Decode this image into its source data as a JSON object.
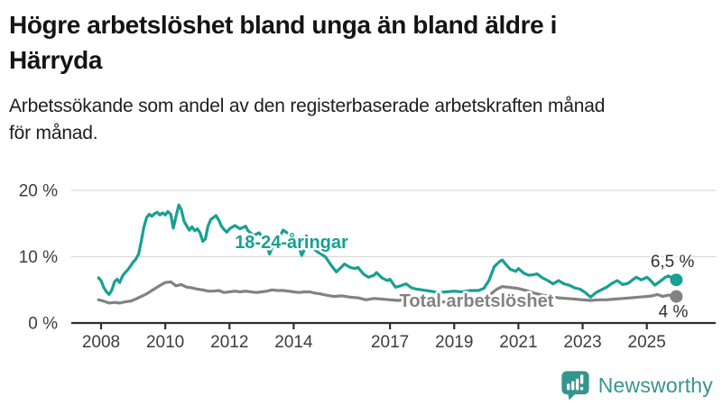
{
  "header": {
    "title": "Högre arbetslöshet bland unga än bland äldre i Härryda",
    "title_lines": [
      "Högre arbetslöshet bland unga än bland äldre i",
      "Härryda"
    ],
    "subtitle": "Arbetssökande som andel av den registerbaserade arbetskraften månad för månad.",
    "subtitle_lines": [
      "Arbetssökande som andel av den registerbaserade arbetskraften månad",
      "för månad."
    ]
  },
  "footer": {
    "brand": "Newsworthy",
    "logo_icon": "bar-chart-speech-bubble-icon",
    "brand_color": "#35958e"
  },
  "colors": {
    "youth_series": "#17a093",
    "total_series": "#828282",
    "axis": "#2f2f2f",
    "gridline": "#d9d9d9",
    "tick_label": "#3d3d3d",
    "end_label": "#2f2f2f"
  },
  "chart_data": {
    "type": "line",
    "title": "Högre arbetslöshet bland unga än bland äldre i Härryda",
    "subtitle": "Arbetssökande som andel av den registerbaserade arbetskraften månad för månad.",
    "xlabel": "",
    "ylabel": "",
    "unit": "%",
    "grid": "horizontal",
    "legend_position": "inline-annotations",
    "xlim": [
      2007.8,
      2026.3
    ],
    "ylim": [
      0,
      20
    ],
    "x_ticks": [
      {
        "v": 2008,
        "label": "2008"
      },
      {
        "v": 2010,
        "label": "2010"
      },
      {
        "v": 2012,
        "label": "2012"
      },
      {
        "v": 2014,
        "label": "2014"
      },
      {
        "v": 2017,
        "label": "2017"
      },
      {
        "v": 2019,
        "label": "2019"
      },
      {
        "v": 2021,
        "label": "2021"
      },
      {
        "v": 2023,
        "label": "2023"
      },
      {
        "v": 2025,
        "label": "2025"
      }
    ],
    "y_ticks": [
      {
        "v": 0,
        "label": "0 %"
      },
      {
        "v": 10,
        "label": "10 %"
      },
      {
        "v": 20,
        "label": "20 %"
      }
    ],
    "series": [
      {
        "name": "18-24-åringar",
        "color": "#17a093",
        "end_label": "6,5 %",
        "end_value": 6.5,
        "points": [
          [
            2007.92,
            6.8
          ],
          [
            2008.0,
            6.4
          ],
          [
            2008.08,
            5.4
          ],
          [
            2008.17,
            4.7
          ],
          [
            2008.25,
            4.3
          ],
          [
            2008.33,
            4.9
          ],
          [
            2008.42,
            6.2
          ],
          [
            2008.5,
            6.6
          ],
          [
            2008.58,
            6.1
          ],
          [
            2008.67,
            7.1
          ],
          [
            2008.75,
            7.6
          ],
          [
            2008.83,
            8.0
          ],
          [
            2008.92,
            8.6
          ],
          [
            2009.0,
            9.2
          ],
          [
            2009.08,
            9.6
          ],
          [
            2009.17,
            10.4
          ],
          [
            2009.25,
            12.3
          ],
          [
            2009.33,
            14.4
          ],
          [
            2009.42,
            15.9
          ],
          [
            2009.5,
            16.4
          ],
          [
            2009.58,
            16.1
          ],
          [
            2009.67,
            16.5
          ],
          [
            2009.75,
            16.7
          ],
          [
            2009.83,
            16.3
          ],
          [
            2009.92,
            16.6
          ],
          [
            2010.0,
            16.3
          ],
          [
            2010.08,
            16.8
          ],
          [
            2010.17,
            16.4
          ],
          [
            2010.25,
            14.3
          ],
          [
            2010.33,
            16.0
          ],
          [
            2010.42,
            17.8
          ],
          [
            2010.5,
            17.1
          ],
          [
            2010.58,
            15.4
          ],
          [
            2010.67,
            14.6
          ],
          [
            2010.75,
            14.0
          ],
          [
            2010.83,
            14.5
          ],
          [
            2010.92,
            13.9
          ],
          [
            2011.0,
            14.2
          ],
          [
            2011.08,
            13.6
          ],
          [
            2011.17,
            12.3
          ],
          [
            2011.25,
            12.7
          ],
          [
            2011.33,
            14.6
          ],
          [
            2011.42,
            15.6
          ],
          [
            2011.5,
            15.9
          ],
          [
            2011.58,
            16.2
          ],
          [
            2011.67,
            15.5
          ],
          [
            2011.75,
            14.6
          ],
          [
            2011.83,
            14.1
          ],
          [
            2011.92,
            13.7
          ],
          [
            2012.0,
            14.2
          ],
          [
            2012.17,
            14.7
          ],
          [
            2012.33,
            14.2
          ],
          [
            2012.5,
            14.6
          ],
          [
            2012.58,
            13.9
          ],
          [
            2012.75,
            13.2
          ],
          [
            2012.92,
            13.6
          ],
          [
            2013.08,
            12.7
          ],
          [
            2013.25,
            10.4
          ],
          [
            2013.42,
            12.5
          ],
          [
            2013.58,
            13.2
          ],
          [
            2013.67,
            14.0
          ],
          [
            2013.83,
            13.5
          ],
          [
            2014.0,
            13.1
          ],
          [
            2014.08,
            12.8
          ],
          [
            2014.25,
            10.2
          ],
          [
            2014.42,
            11.9
          ],
          [
            2014.58,
            11.4
          ],
          [
            2014.75,
            10.7
          ],
          [
            2014.92,
            10.2
          ],
          [
            2015.0,
            9.9
          ],
          [
            2015.17,
            8.7
          ],
          [
            2015.33,
            7.7
          ],
          [
            2015.5,
            8.5
          ],
          [
            2015.58,
            8.9
          ],
          [
            2015.75,
            8.4
          ],
          [
            2015.92,
            8.2
          ],
          [
            2016.0,
            8.4
          ],
          [
            2016.17,
            7.4
          ],
          [
            2016.33,
            6.9
          ],
          [
            2016.5,
            7.2
          ],
          [
            2016.58,
            7.6
          ],
          [
            2016.75,
            6.8
          ],
          [
            2016.92,
            6.4
          ],
          [
            2017.0,
            6.6
          ],
          [
            2017.17,
            5.4
          ],
          [
            2017.33,
            5.6
          ],
          [
            2017.5,
            5.9
          ],
          [
            2017.67,
            5.3
          ],
          [
            2017.83,
            5.1
          ],
          [
            2018.0,
            5.0
          ],
          [
            2018.25,
            4.8
          ],
          [
            2018.5,
            4.6
          ],
          [
            2018.75,
            4.7
          ],
          [
            2019.0,
            4.8
          ],
          [
            2019.25,
            4.7
          ],
          [
            2019.5,
            4.9
          ],
          [
            2019.75,
            4.9
          ],
          [
            2019.92,
            5.2
          ],
          [
            2020.08,
            6.4
          ],
          [
            2020.25,
            8.5
          ],
          [
            2020.42,
            9.3
          ],
          [
            2020.5,
            9.5
          ],
          [
            2020.58,
            9.0
          ],
          [
            2020.75,
            8.1
          ],
          [
            2020.92,
            7.8
          ],
          [
            2021.0,
            8.2
          ],
          [
            2021.17,
            7.5
          ],
          [
            2021.33,
            7.2
          ],
          [
            2021.5,
            7.3
          ],
          [
            2021.58,
            7.4
          ],
          [
            2021.75,
            6.8
          ],
          [
            2021.92,
            6.4
          ],
          [
            2022.08,
            5.9
          ],
          [
            2022.25,
            6.4
          ],
          [
            2022.42,
            5.9
          ],
          [
            2022.58,
            5.7
          ],
          [
            2022.75,
            5.3
          ],
          [
            2022.92,
            5.1
          ],
          [
            2023.08,
            4.6
          ],
          [
            2023.25,
            3.9
          ],
          [
            2023.42,
            4.6
          ],
          [
            2023.58,
            5.0
          ],
          [
            2023.75,
            5.4
          ],
          [
            2023.92,
            6.0
          ],
          [
            2024.08,
            6.4
          ],
          [
            2024.25,
            5.8
          ],
          [
            2024.42,
            6.0
          ],
          [
            2024.58,
            6.6
          ],
          [
            2024.67,
            6.9
          ],
          [
            2024.83,
            6.5
          ],
          [
            2024.92,
            6.7
          ],
          [
            2025.0,
            6.9
          ],
          [
            2025.08,
            6.6
          ],
          [
            2025.25,
            5.7
          ],
          [
            2025.42,
            6.3
          ],
          [
            2025.58,
            6.9
          ],
          [
            2025.67,
            7.1
          ],
          [
            2025.83,
            6.7
          ],
          [
            2025.92,
            6.5
          ]
        ]
      },
      {
        "name": "Total arbetslöshet",
        "color": "#828282",
        "end_label": "4 %",
        "end_value": 4.0,
        "points": [
          [
            2007.92,
            3.5
          ],
          [
            2008.08,
            3.3
          ],
          [
            2008.25,
            3.0
          ],
          [
            2008.42,
            3.1
          ],
          [
            2008.58,
            3.0
          ],
          [
            2008.75,
            3.2
          ],
          [
            2008.92,
            3.3
          ],
          [
            2009.08,
            3.6
          ],
          [
            2009.25,
            4.0
          ],
          [
            2009.42,
            4.4
          ],
          [
            2009.58,
            4.9
          ],
          [
            2009.75,
            5.4
          ],
          [
            2009.92,
            5.9
          ],
          [
            2010.0,
            6.1
          ],
          [
            2010.17,
            6.2
          ],
          [
            2010.33,
            5.6
          ],
          [
            2010.5,
            5.8
          ],
          [
            2010.67,
            5.4
          ],
          [
            2010.83,
            5.3
          ],
          [
            2011.0,
            5.1
          ],
          [
            2011.17,
            5.0
          ],
          [
            2011.33,
            4.8
          ],
          [
            2011.5,
            4.8
          ],
          [
            2011.67,
            4.9
          ],
          [
            2011.83,
            4.6
          ],
          [
            2012.0,
            4.7
          ],
          [
            2012.17,
            4.8
          ],
          [
            2012.33,
            4.7
          ],
          [
            2012.5,
            4.8
          ],
          [
            2012.67,
            4.7
          ],
          [
            2012.83,
            4.6
          ],
          [
            2013.0,
            4.7
          ],
          [
            2013.17,
            4.8
          ],
          [
            2013.33,
            5.0
          ],
          [
            2013.5,
            4.9
          ],
          [
            2013.67,
            4.9
          ],
          [
            2013.83,
            4.8
          ],
          [
            2014.0,
            4.7
          ],
          [
            2014.17,
            4.6
          ],
          [
            2014.33,
            4.7
          ],
          [
            2014.5,
            4.7
          ],
          [
            2014.67,
            4.5
          ],
          [
            2014.83,
            4.4
          ],
          [
            2015.0,
            4.2
          ],
          [
            2015.25,
            4.0
          ],
          [
            2015.5,
            4.1
          ],
          [
            2015.75,
            3.9
          ],
          [
            2016.0,
            3.8
          ],
          [
            2016.25,
            3.5
          ],
          [
            2016.5,
            3.7
          ],
          [
            2016.75,
            3.6
          ],
          [
            2017.0,
            3.5
          ],
          [
            2017.25,
            3.4
          ],
          [
            2017.5,
            3.5
          ],
          [
            2017.75,
            3.4
          ],
          [
            2018.0,
            3.3
          ],
          [
            2018.25,
            3.2
          ],
          [
            2018.5,
            3.1
          ],
          [
            2018.75,
            3.2
          ],
          [
            2019.0,
            3.3
          ],
          [
            2019.25,
            3.3
          ],
          [
            2019.5,
            3.4
          ],
          [
            2019.75,
            3.6
          ],
          [
            2020.0,
            3.9
          ],
          [
            2020.17,
            4.5
          ],
          [
            2020.33,
            5.1
          ],
          [
            2020.5,
            5.5
          ],
          [
            2020.67,
            5.4
          ],
          [
            2020.83,
            5.3
          ],
          [
            2021.0,
            5.2
          ],
          [
            2021.25,
            4.9
          ],
          [
            2021.5,
            4.5
          ],
          [
            2021.75,
            4.2
          ],
          [
            2022.0,
            4.0
          ],
          [
            2022.25,
            3.8
          ],
          [
            2022.5,
            3.7
          ],
          [
            2022.75,
            3.6
          ],
          [
            2023.0,
            3.5
          ],
          [
            2023.25,
            3.4
          ],
          [
            2023.5,
            3.5
          ],
          [
            2023.75,
            3.5
          ],
          [
            2024.0,
            3.6
          ],
          [
            2024.25,
            3.7
          ],
          [
            2024.5,
            3.8
          ],
          [
            2024.75,
            3.9
          ],
          [
            2025.0,
            4.0
          ],
          [
            2025.17,
            4.1
          ],
          [
            2025.33,
            4.3
          ],
          [
            2025.5,
            4.0
          ],
          [
            2025.67,
            4.2
          ],
          [
            2025.83,
            4.1
          ],
          [
            2025.92,
            4.0
          ]
        ]
      }
    ]
  }
}
